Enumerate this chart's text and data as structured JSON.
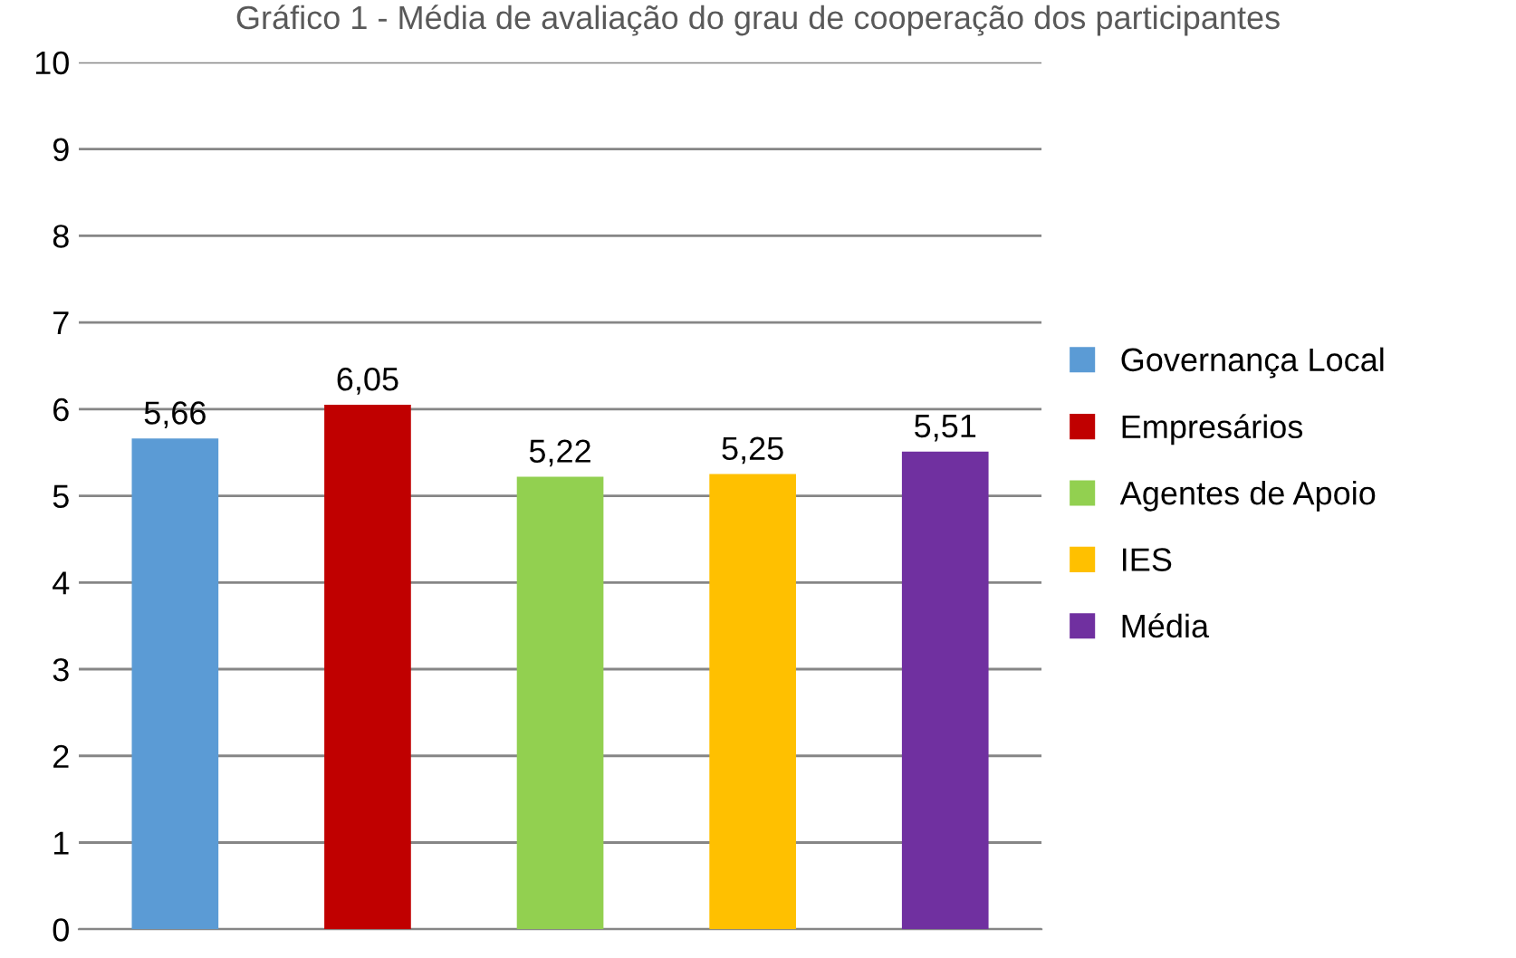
{
  "chart_data": {
    "type": "bar",
    "title": "Gráfico 1 - Média de avaliação do grau de cooperação dos participantes",
    "categories": [
      null,
      null,
      null,
      null,
      null
    ],
    "series": [
      {
        "name": "Governança Local",
        "color": "#5b9bd5",
        "values": [
          5.66,
          null,
          null,
          null,
          null
        ],
        "value_labels": [
          "5,66",
          null,
          null,
          null,
          null
        ]
      },
      {
        "name": "Empresários",
        "color": "#c00000",
        "values": [
          null,
          6.05,
          null,
          null,
          null
        ],
        "value_labels": [
          null,
          "6,05",
          null,
          null,
          null
        ]
      },
      {
        "name": "Agentes de Apoio",
        "color": "#92d050",
        "values": [
          null,
          null,
          5.22,
          null,
          null
        ],
        "value_labels": [
          null,
          null,
          "5,22",
          null,
          null
        ]
      },
      {
        "name": "IES",
        "color": "#ffc000",
        "values": [
          null,
          null,
          null,
          5.25,
          null
        ],
        "value_labels": [
          null,
          null,
          null,
          "5,25",
          null
        ]
      },
      {
        "name": "Média",
        "color": "#7030a0",
        "values": [
          null,
          null,
          null,
          null,
          5.51
        ],
        "value_labels": [
          null,
          null,
          null,
          null,
          "5,51"
        ]
      }
    ],
    "ylim": [
      0,
      10
    ],
    "yticks": [
      0,
      1,
      2,
      3,
      4,
      5,
      6,
      7,
      8,
      9,
      10
    ],
    "grid": "y",
    "legend": "right"
  }
}
